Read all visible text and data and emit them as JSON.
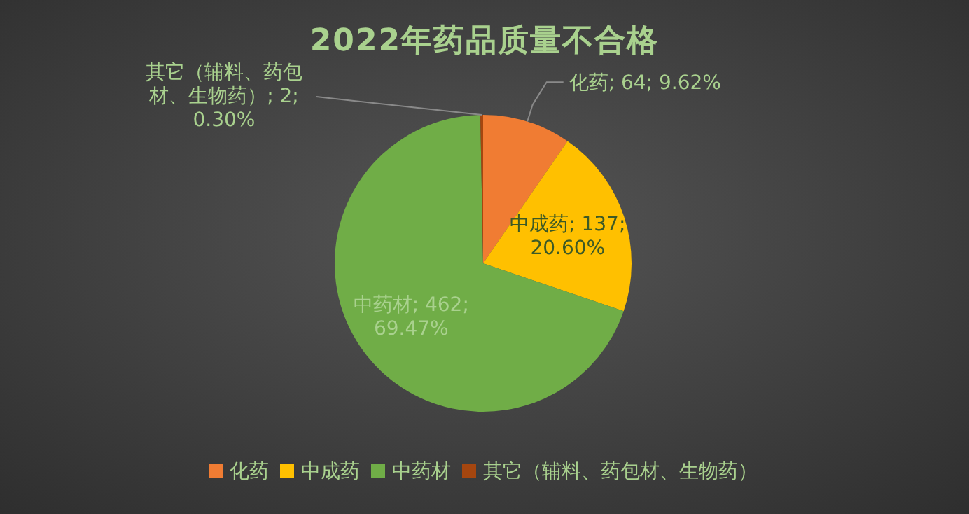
{
  "chart_data": {
    "type": "pie",
    "title": "2022年药品质量不合格",
    "categories": [
      "化药",
      "中成药",
      "中药材",
      "其它（辅料、药包材、生物药）"
    ],
    "values": [
      64,
      137,
      462,
      2
    ],
    "colors": [
      "#f07c33",
      "#ffc000",
      "#70ad47",
      "#a5460f"
    ],
    "value_labels": [
      "化药; 64; 9.62%",
      "中成药; 137; 20.60%",
      "中药材; 462; 69.47%",
      "其它（辅料、药包材、生物药）; 2; 0.30%"
    ],
    "legend": "bottom"
  }
}
